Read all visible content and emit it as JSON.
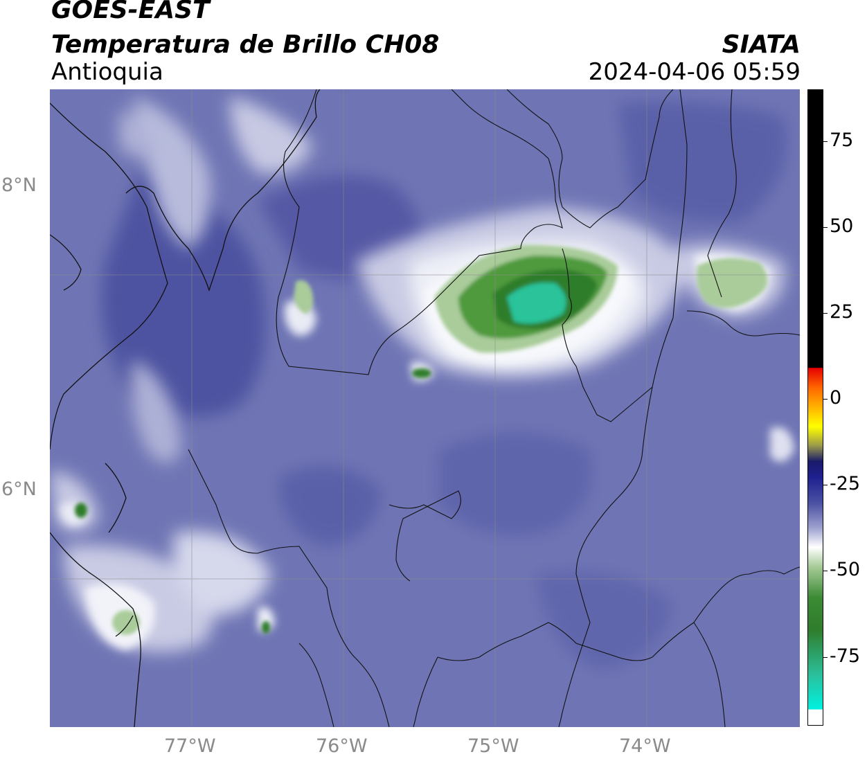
{
  "header": {
    "satellite": "GOES-EAST",
    "product": "Temperatura de Brillo CH08",
    "region": "Antioquia",
    "organization": "SIATA",
    "datetime": "2024-04-06 05:59"
  },
  "map": {
    "lat_ticks": [
      "8°N",
      "6°N"
    ],
    "lon_ticks": [
      "77°W",
      "76°W",
      "75°W",
      "74°W"
    ],
    "colors": {
      "background_cloudfree": "#6f75b4",
      "mid_blue": "#5a60a8",
      "light": "#c9cbe4",
      "white": "#f5f6fb",
      "green_light": "#a9cc9a",
      "green": "#4f9a3c",
      "green_dark": "#2f7d2c",
      "cyan": "#2bc39a"
    },
    "features": [
      "cloud-top-core-antioquia-north",
      "cloud-top-east-cell",
      "cloud-top-west-cell",
      "cloud-top-southwest-cluster",
      "department-borders",
      "coastline"
    ]
  },
  "colorbar": {
    "ticks": [
      "75",
      "50",
      "25",
      "0",
      "-25",
      "-50",
      "-75"
    ],
    "tick_values": [
      75,
      50,
      25,
      0,
      -25,
      -50,
      -75
    ],
    "range": [
      -95,
      90
    ],
    "units_shown": false
  }
}
